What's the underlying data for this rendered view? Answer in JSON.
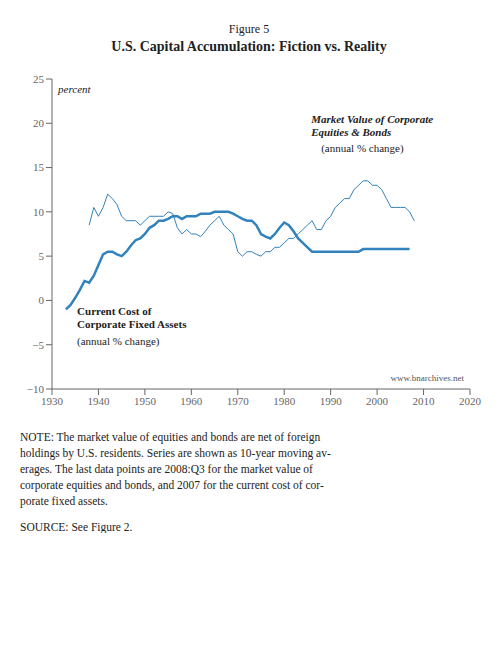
{
  "chart_data": {
    "type": "line",
    "subtitle": "Figure 5",
    "title": "U.S. Capital Accumulation: Fiction vs. Reality",
    "ylabel": "percent",
    "xlim": [
      1930,
      2020
    ],
    "ylim": [
      -10,
      25
    ],
    "xticks": [
      1930,
      1940,
      1950,
      1960,
      1970,
      1980,
      1990,
      2000,
      2010,
      2020
    ],
    "yticks": [
      {
        "value": -10,
        "label": "−10"
      },
      {
        "value": -5,
        "label": "−5"
      },
      0,
      5,
      10,
      15,
      20,
      25
    ],
    "grid": false,
    "annotations": [
      "Current Cost of\nCorporate Fixed Assets",
      "(annual % change)",
      "Market Value of Corporate\nEquities & Bonds",
      "(annual % change)",
      "www.bnarchives.net",
      "NOTE: The market value of equities and bonds are net of foreign\nholdings by U.S. residents. Series are shown as 10-year moving av-\nerages. The last data points are 2008:Q3 for the market value of\ncorporate equities and bonds, and 2007 for the current cost of cor-\nporate fixed assets.",
      "SOURCE: See Figure 2."
    ],
    "series": [
      {
        "line_style": "thin",
        "x": [
          1938,
          1939,
          1940,
          1941,
          1942,
          1943,
          1944,
          1945,
          1946,
          1947,
          1948,
          1949,
          1950,
          1951,
          1952,
          1953,
          1954,
          1955,
          1956,
          1957,
          1958,
          1959,
          1960,
          1961,
          1962,
          1963,
          1964,
          1965,
          1966,
          1967,
          1968,
          1969,
          1970,
          1971,
          1972,
          1973,
          1974,
          1975,
          1976,
          1977,
          1978,
          1979,
          1980,
          1981,
          1982,
          1983,
          1984,
          1985,
          1986,
          1987,
          1988,
          1989,
          1990,
          1991,
          1992,
          1993,
          1994,
          1995,
          1996,
          1997,
          1998,
          1999,
          2000,
          2001,
          2002,
          2003,
          2004,
          2005,
          2006,
          2007,
          2008
        ],
        "values": [
          8.5,
          10.5,
          9.5,
          10.5,
          12.0,
          11.5,
          10.8,
          9.5,
          9.0,
          9.0,
          9.0,
          8.5,
          9.0,
          9.5,
          9.5,
          9.5,
          9.5,
          10.0,
          9.8,
          8.2,
          7.5,
          8.0,
          7.5,
          7.5,
          7.2,
          7.8,
          8.5,
          9.0,
          9.5,
          8.5,
          8.0,
          7.5,
          5.5,
          5.0,
          5.5,
          5.5,
          5.2,
          5.0,
          5.5,
          5.5,
          6.0,
          6.0,
          6.5,
          7.0,
          7.0,
          7.5,
          8.0,
          8.5,
          9.0,
          8.0,
          8.0,
          9.0,
          9.5,
          10.5,
          11.0,
          11.5,
          11.5,
          12.5,
          13.0,
          13.5,
          13.5,
          13.0,
          13.0,
          12.5,
          11.5,
          10.5,
          10.5,
          10.5,
          10.5,
          10.0,
          9.0
        ]
      },
      {
        "line_style": "thick",
        "x": [
          1933,
          1934,
          1935,
          1936,
          1937,
          1938,
          1939,
          1940,
          1941,
          1942,
          1943,
          1944,
          1945,
          1946,
          1947,
          1948,
          1949,
          1950,
          1951,
          1952,
          1953,
          1954,
          1955,
          1956,
          1957,
          1958,
          1959,
          1960,
          1961,
          1962,
          1963,
          1964,
          1965,
          1966,
          1967,
          1968,
          1969,
          1970,
          1971,
          1972,
          1973,
          1974,
          1975,
          1976,
          1977,
          1978,
          1979,
          1980,
          1981,
          1982,
          1983,
          1984,
          1985,
          1986,
          1987,
          1988,
          1989,
          1990,
          1991,
          1992,
          1993,
          1994,
          1995,
          1996,
          1997,
          1998,
          1999,
          2000,
          2001,
          2002,
          2003,
          2004,
          2005,
          2006,
          2007
        ],
        "values": [
          -1.0,
          -0.5,
          0.3,
          1.2,
          2.2,
          2.0,
          2.8,
          4.0,
          5.2,
          5.5,
          5.5,
          5.2,
          5.0,
          5.5,
          6.2,
          6.8,
          7.0,
          7.5,
          8.2,
          8.5,
          9.0,
          9.0,
          9.2,
          9.5,
          9.5,
          9.2,
          9.5,
          9.5,
          9.5,
          9.8,
          9.8,
          9.8,
          10.0,
          10.0,
          10.0,
          10.0,
          9.8,
          9.5,
          9.2,
          9.0,
          9.0,
          8.5,
          7.5,
          7.2,
          7.0,
          7.5,
          8.2,
          8.8,
          8.5,
          7.8,
          7.0,
          6.5,
          6.0,
          5.5,
          5.5,
          5.5,
          5.5,
          5.5,
          5.5,
          5.5,
          5.5,
          5.5,
          5.5,
          5.5,
          5.8,
          5.8,
          5.8,
          5.8,
          5.8,
          5.8,
          5.8,
          5.8,
          5.8,
          5.8,
          5.8
        ]
      }
    ]
  }
}
